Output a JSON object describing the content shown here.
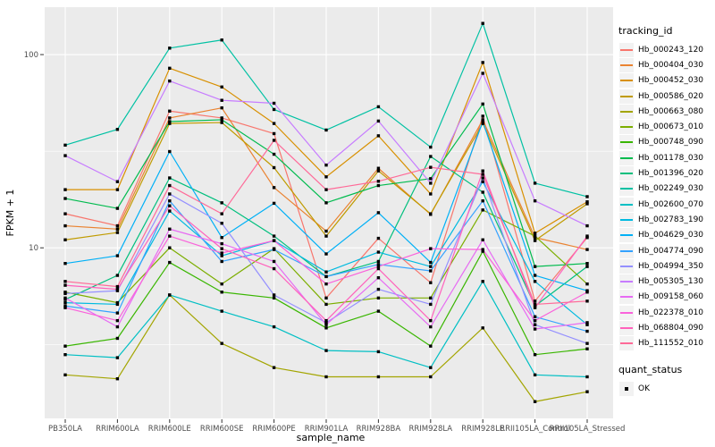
{
  "chart_data": {
    "type": "line",
    "title": "",
    "xlabel": "sample_name",
    "ylabel": "FPKM + 1",
    "y_scale": "log10",
    "ylim": [
      1.31,
      176
    ],
    "y_ticks": [
      100,
      10
    ],
    "y_minor_ticks": [
      31.6,
      3.16
    ],
    "grid": true,
    "legend_position": "right",
    "point_marker": "black-square",
    "x_categories": [
      "PB350LA",
      "RRIM600LA",
      "RRIM600LE",
      "RRIM600SE",
      "RRIM600PE",
      "RRIM901LA",
      "RRIM928BA",
      "RRIM928LA",
      "RRIM928LE",
      "RRII105LA_Control",
      "RRII105LA_Stressed"
    ],
    "series": [
      {
        "name": "Hb_000243_120",
        "color": "#F8766D",
        "values": [
          15,
          13,
          51,
          47,
          39,
          5.5,
          11.2,
          6.6,
          48,
          5.3,
          11.3
        ]
      },
      {
        "name": "Hb_000404_030",
        "color": "#EA8331",
        "values": [
          13,
          12.5,
          47,
          53,
          20.5,
          12.2,
          25.8,
          14.9,
          46,
          11.3,
          9.8
        ]
      },
      {
        "name": "Hb_000452_030",
        "color": "#D89000",
        "values": [
          20,
          20,
          85,
          68,
          44,
          23.3,
          38,
          19,
          91,
          11.9,
          17.3
        ]
      },
      {
        "name": "Hb_000586_020",
        "color": "#C09B00",
        "values": [
          11,
          12,
          44,
          44.5,
          26,
          11.5,
          25,
          15,
          44,
          10.9,
          16.9
        ]
      },
      {
        "name": "Hb_000663_080",
        "color": "#A3A500",
        "values": [
          2.2,
          2.1,
          5.7,
          3.2,
          2.4,
          2.15,
          2.15,
          2.15,
          3.85,
          1.6,
          1.8
        ]
      },
      {
        "name": "Hb_000673_010",
        "color": "#7CAE00",
        "values": [
          5.9,
          5.2,
          10,
          6.5,
          9.9,
          5.1,
          5.5,
          5.5,
          15.7,
          11.5,
          6.5
        ]
      },
      {
        "name": "Hb_000748_090",
        "color": "#39B600",
        "values": [
          3.1,
          3.4,
          8.4,
          5.9,
          5.5,
          3.85,
          4.7,
          3.1,
          9.6,
          2.8,
          3.0
        ]
      },
      {
        "name": "Hb_001178_030",
        "color": "#00BB4E",
        "values": [
          18,
          16,
          45,
          46,
          30.5,
          17.1,
          21,
          22.8,
          55.5,
          8.0,
          8.3
        ]
      },
      {
        "name": "Hb_001396_020",
        "color": "#00BF7D",
        "values": [
          5.4,
          7.2,
          23,
          17.1,
          11.5,
          7.1,
          8.5,
          29.7,
          19.4,
          5.0,
          8.0
        ]
      },
      {
        "name": "Hb_002249_030",
        "color": "#00C1A3",
        "values": [
          34,
          41,
          108,
          119,
          52,
          40.7,
          53.7,
          33.2,
          145,
          21.6,
          18.4
        ]
      },
      {
        "name": "Hb_002600_070",
        "color": "#00BFC4",
        "values": [
          2.8,
          2.7,
          5.7,
          4.7,
          3.9,
          2.94,
          2.9,
          2.4,
          6.7,
          2.2,
          2.15
        ]
      },
      {
        "name": "Hb_002783_190",
        "color": "#00BAE0",
        "values": [
          5.2,
          5.1,
          15.5,
          9.1,
          10.9,
          7.5,
          9.5,
          8.0,
          22,
          6.7,
          4.0
        ]
      },
      {
        "name": "Hb_004629_030",
        "color": "#00B0F6",
        "values": [
          8.3,
          9.1,
          31.5,
          11.3,
          17,
          9.3,
          15.2,
          8.4,
          45,
          7.2,
          6.0
        ]
      },
      {
        "name": "Hb_004774_090",
        "color": "#35A2FF",
        "values": [
          5.0,
          4.6,
          17.5,
          8.5,
          9.8,
          7.1,
          8.2,
          7.6,
          17.5,
          4.4,
          3.7
        ]
      },
      {
        "name": "Hb_004994_350",
        "color": "#9590FF",
        "values": [
          5.8,
          6.0,
          19,
          13.4,
          5.7,
          4.1,
          6.1,
          5.1,
          23,
          4.0,
          3.2
        ]
      },
      {
        "name": "Hb_005305_130",
        "color": "#C77CFF",
        "values": [
          30,
          22,
          73,
          58,
          56,
          26.8,
          45.3,
          21.6,
          80,
          17.5,
          13.0
        ]
      },
      {
        "name": "Hb_009158_060",
        "color": "#E76BF3",
        "values": [
          5.5,
          3.9,
          12.5,
          10.5,
          8.5,
          4.0,
          7.0,
          3.9,
          11.0,
          3.8,
          4.1
        ]
      },
      {
        "name": "Hb_022378_010",
        "color": "#FA62DB",
        "values": [
          4.9,
          4.2,
          11.5,
          9.4,
          10.9,
          6.5,
          8.0,
          9.9,
          9.8,
          4.2,
          5.9
        ]
      },
      {
        "name": "Hb_068804_090",
        "color": "#FF62BC",
        "values": [
          6.4,
          6.1,
          16.5,
          9.9,
          7.8,
          4.2,
          7.8,
          4.2,
          25,
          4.9,
          11.5
        ]
      },
      {
        "name": "Hb_111552_010",
        "color": "#FF6A98",
        "values": [
          6.7,
          6.3,
          21,
          15,
          36,
          20,
          22.1,
          26.1,
          24,
          5.1,
          5.3
        ]
      }
    ]
  },
  "legend": {
    "tracking_title": "tracking_id",
    "quant_title": "quant_status",
    "quant_items": [
      {
        "label": "OK"
      }
    ]
  },
  "styles": {
    "panel_bg": "#EBEBEB",
    "grid_major": "#FFFFFF",
    "grid_minor": "#F5F5F5",
    "axis_text": "#4D4D4D",
    "tick_mark": "#333333",
    "key_bg": "#F2F2F2",
    "point_color": "#000000"
  }
}
